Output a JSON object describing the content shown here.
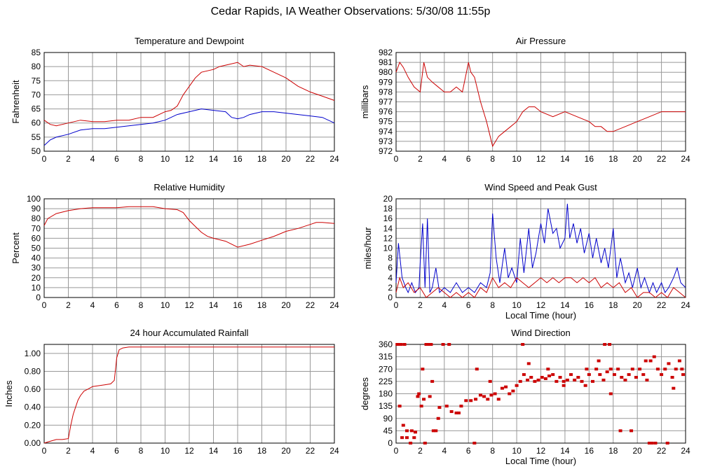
{
  "title": "Cedar Rapids, IA Weather Observations: 5/30/08 11:55p",
  "colors": {
    "red": "#cc0000",
    "blue": "#0000cc",
    "grid": "#999999"
  },
  "chart_data": [
    {
      "id": "temp",
      "type": "line",
      "title": "Temperature and Dewpoint",
      "xlabel": "",
      "ylabel": "Fahrenheit",
      "xlim": [
        0,
        24
      ],
      "ylim": [
        50,
        85
      ],
      "xticks": [
        "0",
        "2",
        "4",
        "6",
        "8",
        "10",
        "12",
        "14",
        "16",
        "18",
        "20",
        "22",
        "24"
      ],
      "yticks": [
        "50",
        "55",
        "60",
        "65",
        "70",
        "75",
        "80",
        "85"
      ],
      "series": [
        {
          "color": "#cc0000",
          "x": [
            0,
            0.5,
            1,
            2,
            3,
            4,
            5,
            6,
            7,
            8,
            9,
            10,
            10.5,
            11,
            11.5,
            12,
            12.5,
            13,
            14,
            14.5,
            15,
            16,
            16.5,
            17,
            18,
            19,
            20,
            21,
            22,
            23,
            24
          ],
          "y": [
            61,
            59.5,
            59,
            60,
            61,
            60.5,
            60.5,
            61,
            61,
            62,
            62,
            64,
            64.5,
            66,
            70,
            73,
            76,
            78,
            79,
            80,
            80.5,
            81.5,
            80,
            80.5,
            80,
            78,
            76,
            73,
            71,
            69.5,
            68
          ]
        },
        {
          "color": "#0000cc",
          "x": [
            0,
            0.5,
            1,
            2,
            3,
            4,
            5,
            6,
            7,
            8,
            9,
            10,
            11,
            12,
            13,
            14,
            15,
            15.5,
            16,
            16.5,
            17,
            18,
            19,
            20,
            21,
            22,
            23,
            24
          ],
          "y": [
            52,
            54,
            55,
            56,
            57.5,
            58,
            58,
            58.5,
            59,
            59.5,
            60,
            61,
            63,
            64,
            65,
            64.5,
            64,
            62,
            61.5,
            62,
            63,
            64,
            64,
            63.5,
            63,
            62.5,
            62,
            60
          ]
        }
      ]
    },
    {
      "id": "pressure",
      "type": "line",
      "title": "Air Pressure",
      "xlabel": "",
      "ylabel": "millibars",
      "xlim": [
        0,
        24
      ],
      "ylim": [
        972,
        982
      ],
      "xticks": [
        "0",
        "2",
        "4",
        "6",
        "8",
        "10",
        "12",
        "14",
        "16",
        "18",
        "20",
        "22",
        "24"
      ],
      "yticks": [
        "972",
        "973",
        "974",
        "975",
        "976",
        "977",
        "978",
        "979",
        "980",
        "981",
        "982"
      ],
      "series": [
        {
          "color": "#cc0000",
          "x": [
            0,
            0.3,
            0.6,
            1,
            1.5,
            2,
            2.3,
            2.6,
            3,
            3.5,
            4,
            4.5,
            5,
            5.5,
            6,
            6.2,
            6.5,
            7,
            7.5,
            8,
            8.5,
            9,
            9.5,
            10,
            10.5,
            11,
            11.5,
            12,
            13,
            14,
            15,
            16,
            16.5,
            17,
            17.5,
            18,
            19,
            20,
            21,
            22,
            23,
            24
          ],
          "y": [
            980,
            981,
            980.5,
            979.5,
            978.5,
            978,
            981,
            979.5,
            979,
            978.5,
            978,
            978,
            978.5,
            978,
            981,
            980,
            979.5,
            977,
            975,
            972.5,
            973.5,
            974,
            974.5,
            975,
            976,
            976.5,
            976.5,
            976,
            975.5,
            976,
            975.5,
            975,
            974.5,
            974.5,
            974,
            974,
            974.5,
            975,
            975.5,
            976,
            976,
            976
          ]
        }
      ]
    },
    {
      "id": "humidity",
      "type": "line",
      "title": "Relative Humidity",
      "xlabel": "",
      "ylabel": "Percent",
      "xlim": [
        0,
        24
      ],
      "ylim": [
        0,
        100
      ],
      "xticks": [
        "0",
        "2",
        "4",
        "6",
        "8",
        "10",
        "12",
        "14",
        "16",
        "18",
        "20",
        "22",
        "24"
      ],
      "yticks": [
        "0",
        "10",
        "20",
        "30",
        "40",
        "50",
        "60",
        "70",
        "80",
        "90",
        "100"
      ],
      "series": [
        {
          "color": "#cc0000",
          "x": [
            0,
            0.3,
            1,
            2,
            3,
            4,
            5,
            6,
            7,
            8,
            9,
            10,
            11,
            11.5,
            12,
            12.5,
            13,
            13.5,
            14,
            15,
            16,
            17,
            18,
            19,
            20,
            21,
            22,
            22.5,
            23,
            24
          ],
          "y": [
            73,
            80,
            85,
            88,
            90,
            91,
            91,
            91,
            92,
            92,
            92,
            90,
            89,
            86,
            78,
            72,
            66,
            62,
            60,
            57,
            51,
            54,
            58,
            62,
            67,
            70,
            74,
            76,
            76,
            75
          ]
        }
      ]
    },
    {
      "id": "wind",
      "type": "line",
      "title": "Wind Speed and Peak Gust",
      "xlabel": "Local Time (hour)",
      "ylabel": "miles/hour",
      "xlim": [
        0,
        24
      ],
      "ylim": [
        0,
        20
      ],
      "xticks": [
        "0",
        "2",
        "4",
        "6",
        "8",
        "10",
        "12",
        "14",
        "16",
        "18",
        "20",
        "22",
        "24"
      ],
      "yticks": [
        "0",
        "2",
        "4",
        "6",
        "8",
        "10",
        "12",
        "14",
        "16",
        "18",
        "20"
      ],
      "series": [
        {
          "color": "#0000cc",
          "x": [
            0,
            0.2,
            0.5,
            0.8,
            1,
            1.3,
            1.6,
            1.9,
            2,
            2.2,
            2.4,
            2.6,
            2.8,
            3,
            3.3,
            3.6,
            4,
            4.5,
            5,
            5.5,
            6,
            6.5,
            7,
            7.5,
            7.8,
            8,
            8.3,
            8.6,
            9,
            9.3,
            9.6,
            10,
            10.3,
            10.6,
            11,
            11.3,
            11.6,
            12,
            12.3,
            12.6,
            13,
            13.3,
            13.6,
            14,
            14.2,
            14.4,
            14.7,
            15,
            15.3,
            15.6,
            16,
            16.3,
            16.6,
            17,
            17.3,
            17.6,
            18,
            18.3,
            18.6,
            19,
            19.3,
            19.6,
            20,
            20.3,
            20.6,
            21,
            21.3,
            21.6,
            22,
            22.3,
            22.6,
            23,
            23.3,
            23.6,
            24
          ],
          "y": [
            3,
            11,
            4,
            2,
            1,
            3,
            1,
            2,
            7,
            15,
            2,
            16,
            1,
            2,
            6,
            1,
            2,
            1,
            3,
            1,
            2,
            1,
            3,
            2,
            5,
            17,
            8,
            3,
            10,
            4,
            6,
            3,
            12,
            5,
            14,
            6,
            9,
            15,
            11,
            18,
            13,
            14,
            10,
            12,
            19,
            12,
            15,
            11,
            14,
            9,
            13,
            8,
            12,
            7,
            10,
            6,
            14,
            4,
            8,
            3,
            5,
            2,
            6,
            2,
            4,
            1,
            3,
            1,
            3,
            1,
            2,
            4,
            6,
            3,
            2
          ]
        },
        {
          "color": "#cc0000",
          "x": [
            0,
            0.3,
            0.6,
            1,
            1.5,
            2,
            2.5,
            3,
            3.5,
            4,
            4.5,
            5,
            5.5,
            6,
            6.5,
            7,
            7.5,
            8,
            8.5,
            9,
            9.5,
            10,
            10.5,
            11,
            11.5,
            12,
            12.5,
            13,
            13.5,
            14,
            14.5,
            15,
            15.5,
            16,
            16.5,
            17,
            17.5,
            18,
            18.5,
            19,
            19.5,
            20,
            20.5,
            21,
            21.5,
            22,
            22.5,
            23,
            23.5,
            24
          ],
          "y": [
            1,
            4,
            2,
            3,
            1,
            2,
            0,
            1,
            2,
            1,
            0,
            1,
            0,
            1,
            0,
            2,
            1,
            4,
            2,
            3,
            2,
            4,
            3,
            2,
            3,
            4,
            3,
            4,
            3,
            4,
            4,
            3,
            4,
            3,
            4,
            2,
            3,
            2,
            3,
            1,
            2,
            0,
            1,
            1,
            0,
            1,
            0,
            2,
            1,
            0
          ]
        }
      ]
    },
    {
      "id": "rain",
      "type": "line",
      "title": "24 hour Accumulated Rainfall",
      "xlabel": "",
      "ylabel": "Inches",
      "xlim": [
        0,
        24
      ],
      "ylim": [
        0,
        1.1
      ],
      "xticks": [
        "0",
        "2",
        "4",
        "6",
        "8",
        "10",
        "12",
        "14",
        "16",
        "18",
        "20",
        "22",
        "24"
      ],
      "yticks": [
        "0.00",
        "0.20",
        "0.40",
        "0.60",
        "0.80",
        "1.00"
      ],
      "series": [
        {
          "color": "#cc0000",
          "x": [
            0,
            0.5,
            1,
            1.5,
            2,
            2.2,
            2.4,
            2.6,
            2.8,
            3,
            3.3,
            3.6,
            4,
            4.5,
            5,
            5.5,
            5.8,
            6,
            6.2,
            6.5,
            7,
            8,
            24
          ],
          "y": [
            0,
            0.02,
            0.04,
            0.04,
            0.05,
            0.2,
            0.32,
            0.4,
            0.48,
            0.53,
            0.58,
            0.6,
            0.63,
            0.64,
            0.65,
            0.66,
            0.7,
            0.95,
            1.04,
            1.06,
            1.07,
            1.07,
            1.07
          ]
        }
      ]
    },
    {
      "id": "direction",
      "type": "scatter",
      "title": "Wind Direction",
      "xlabel": "Local Time (hour)",
      "ylabel": "degrees",
      "xlim": [
        0,
        24
      ],
      "ylim": [
        0,
        360
      ],
      "xticks": [
        "0",
        "2",
        "4",
        "6",
        "8",
        "10",
        "12",
        "14",
        "16",
        "18",
        "20",
        "22",
        "24"
      ],
      "yticks": [
        "0",
        "45",
        "90",
        "135",
        "180",
        "225",
        "270",
        "315",
        "360"
      ],
      "series": [
        {
          "color": "#cc0000",
          "x": [
            0.1,
            0.3,
            0.5,
            0.7,
            0.9,
            1.2,
            1.5,
            1.8,
            2.1,
            2.4,
            2.7,
            3.0,
            3.3,
            3.6,
            0.2,
            0.6,
            0.9,
            1.3,
            1.6,
            1.9,
            2.2,
            2.5,
            2.8,
            3.1,
            3.5,
            3.9,
            4.2,
            4.6,
            5.0,
            5.4,
            5.8,
            6.2,
            6.6,
            7.0,
            7.3,
            7.6,
            7.9,
            8.2,
            8.5,
            8.8,
            9.1,
            9.4,
            9.7,
            10.0,
            10.3,
            10.6,
            10.9,
            11.2,
            11.5,
            11.8,
            12.1,
            12.4,
            12.7,
            13.0,
            13.3,
            13.6,
            13.9,
            14.2,
            14.5,
            14.8,
            15.1,
            15.4,
            15.7,
            16.0,
            16.3,
            16.6,
            16.9,
            17.2,
            17.5,
            17.8,
            18.1,
            18.4,
            18.7,
            19.0,
            19.3,
            19.6,
            19.9,
            20.2,
            20.5,
            20.8,
            21.1,
            21.4,
            21.7,
            22.0,
            22.3,
            22.6,
            22.9,
            23.2,
            23.5,
            23.8,
            2.3,
            4.4,
            5.2,
            6.7,
            10.5,
            11.0,
            12.6,
            13.9,
            15.8,
            17.3,
            17.8,
            19.5,
            21.0,
            21.5,
            22.5,
            23.0,
            23.7,
            0.4,
            2.9,
            6.5,
            7.8,
            16.8,
            17.7,
            18.6,
            20.7,
            21.2
          ],
          "y": [
            360,
            135,
            20,
            360,
            45,
            0,
            20,
            170,
            135,
            0,
            360,
            225,
            45,
            130,
            360,
            65,
            20,
            45,
            40,
            180,
            270,
            360,
            170,
            45,
            90,
            360,
            135,
            115,
            110,
            135,
            155,
            155,
            160,
            175,
            170,
            160,
            175,
            180,
            160,
            200,
            205,
            180,
            190,
            210,
            225,
            250,
            230,
            240,
            225,
            230,
            240,
            235,
            245,
            250,
            225,
            240,
            210,
            230,
            250,
            230,
            240,
            225,
            210,
            250,
            225,
            270,
            250,
            230,
            260,
            270,
            250,
            270,
            240,
            230,
            250,
            270,
            240,
            270,
            250,
            230,
            300,
            315,
            270,
            250,
            270,
            290,
            240,
            270,
            300,
            250,
            160,
            360,
            110,
            270,
            360,
            290,
            270,
            225,
            270,
            360,
            180,
            45,
            0,
            0,
            0,
            200,
            270,
            360,
            360,
            0,
            225,
            300,
            360,
            45,
            300,
            0
          ]
        }
      ]
    }
  ]
}
